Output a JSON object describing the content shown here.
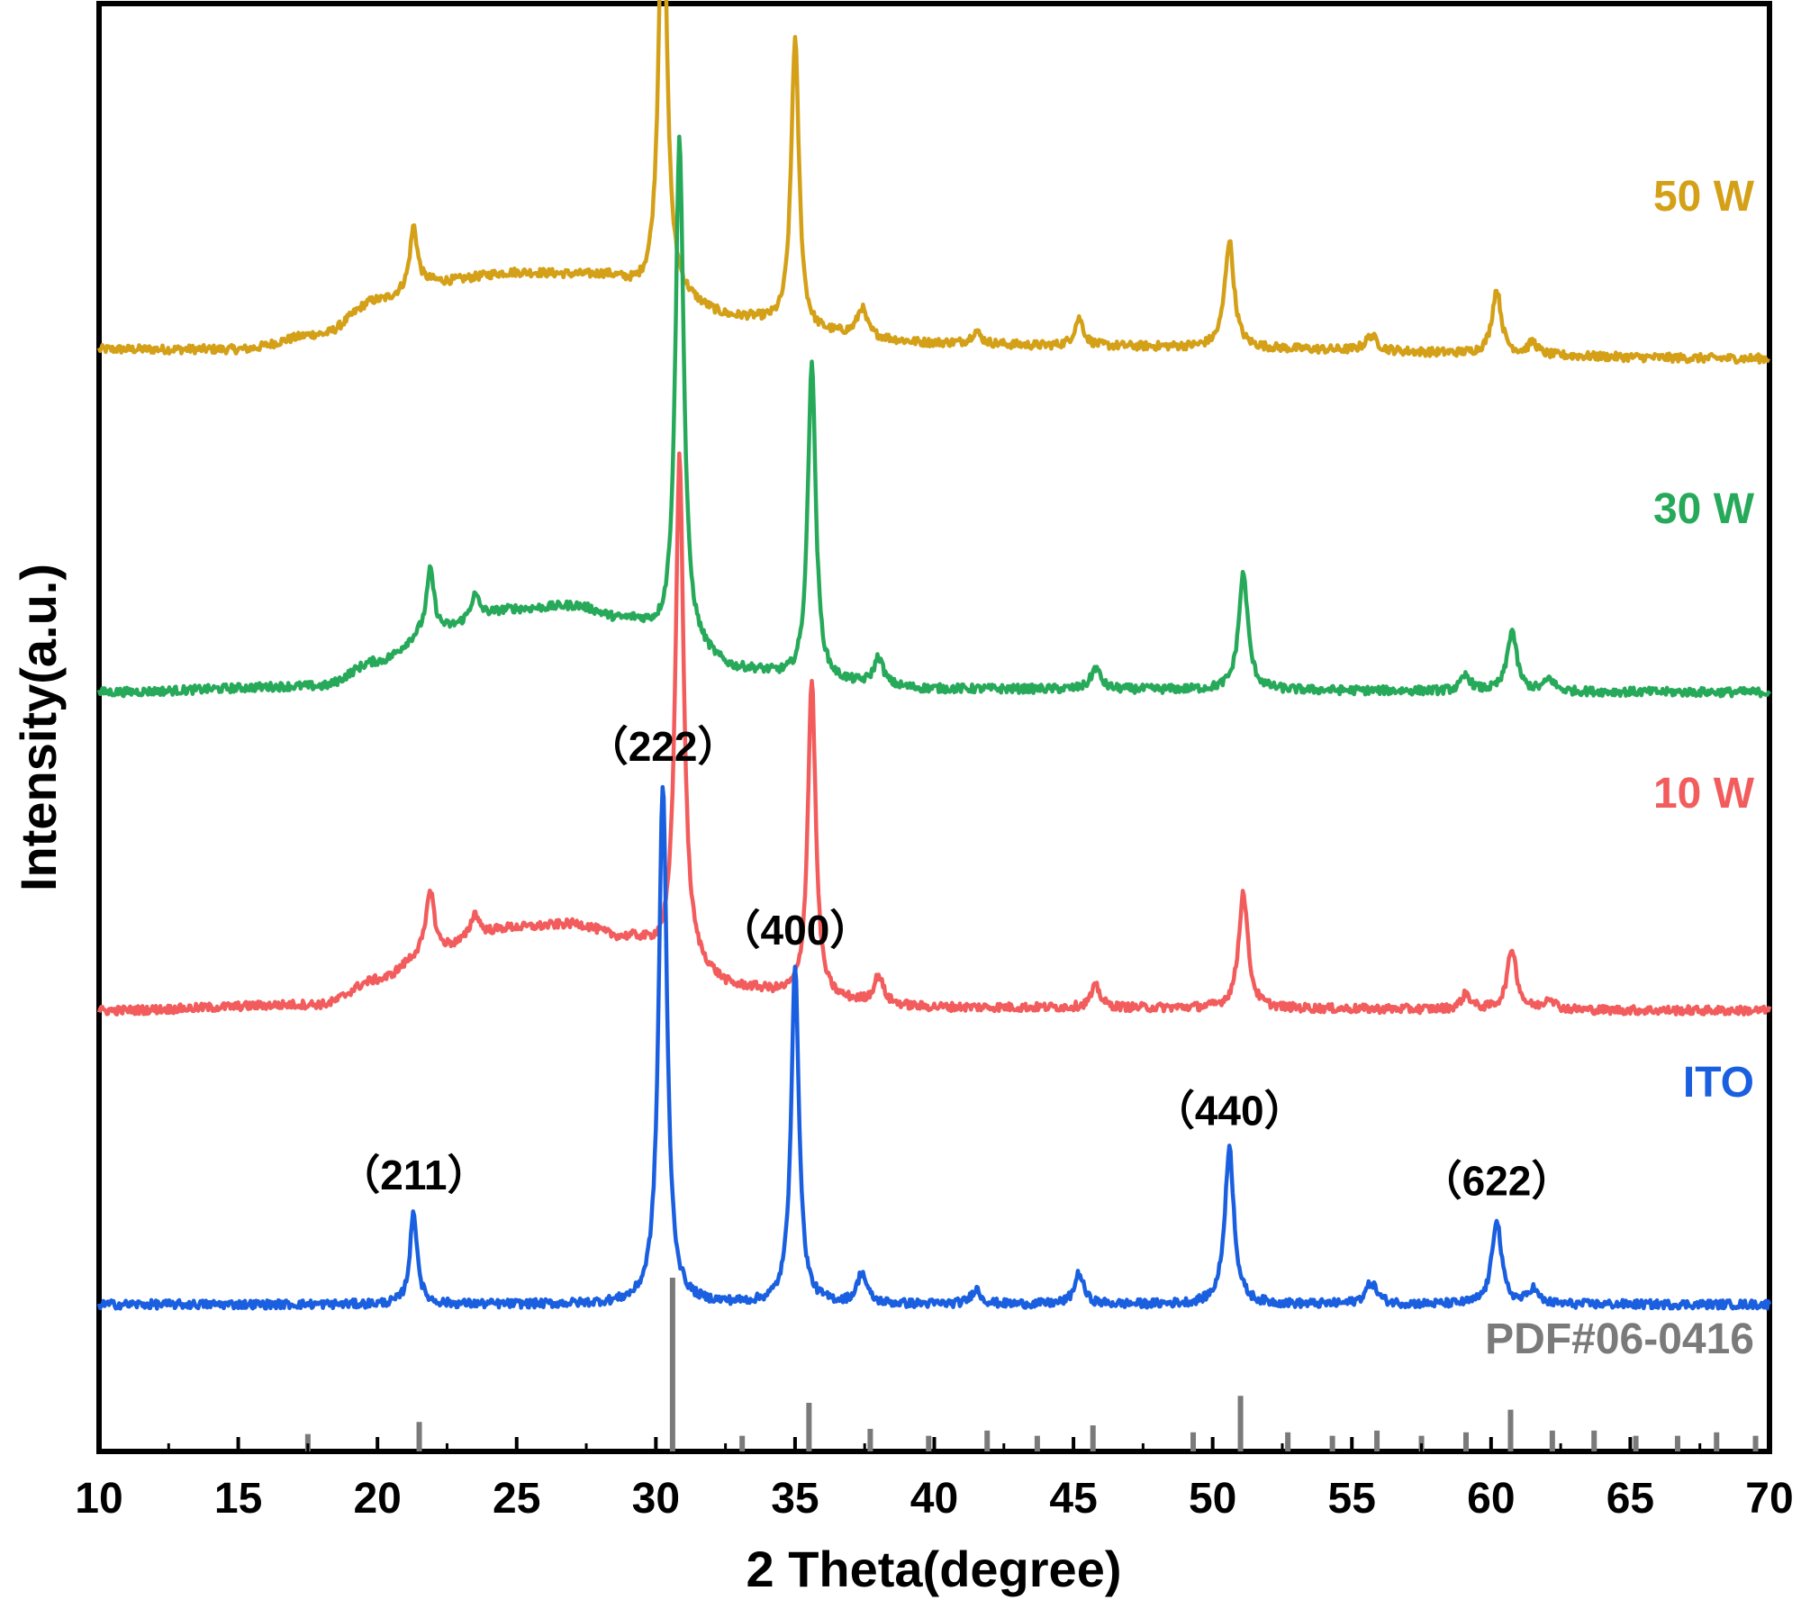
{
  "chart_data": {
    "type": "line",
    "title": "",
    "xlabel": "2 Theta(degree)",
    "ylabel": "Intensity(a.u.)",
    "xlim": [
      10,
      70
    ],
    "x_ticks": [
      "10",
      "15",
      "20",
      "25",
      "30",
      "35",
      "40",
      "45",
      "50",
      "55",
      "60",
      "65",
      "70"
    ],
    "y_ticks": [],
    "grid": false,
    "legend": "inline labels at right end of each curve",
    "series": [
      {
        "name": "50 W",
        "color": "#d4a017",
        "baseline_level": 3.6,
        "background": [
          [
            10,
            0
          ],
          [
            15,
            0
          ],
          [
            18,
            0.05
          ],
          [
            20,
            0.16
          ],
          [
            22,
            0.22
          ],
          [
            25,
            0.25
          ],
          [
            28,
            0.24
          ],
          [
            30,
            0.18
          ],
          [
            33,
            0.1
          ],
          [
            36,
            0.05
          ],
          [
            40,
            0.02
          ],
          [
            45,
            0.01
          ],
          [
            70,
            -0.03
          ]
        ],
        "peaks": [
          {
            "x": 21.3,
            "height": 0.2,
            "width": 0.16
          },
          {
            "x": 30.25,
            "height": 1.4,
            "width": 0.18
          },
          {
            "x": 35.0,
            "height": 0.95,
            "width": 0.17
          },
          {
            "x": 37.4,
            "height": 0.09,
            "width": 0.2
          },
          {
            "x": 41.5,
            "height": 0.04,
            "width": 0.2
          },
          {
            "x": 45.2,
            "height": 0.09,
            "width": 0.2
          },
          {
            "x": 50.6,
            "height": 0.35,
            "width": 0.2
          },
          {
            "x": 55.7,
            "height": 0.05,
            "width": 0.25
          },
          {
            "x": 60.2,
            "height": 0.21,
            "width": 0.2
          },
          {
            "x": 61.5,
            "height": 0.04,
            "width": 0.2
          }
        ]
      },
      {
        "name": "30 W",
        "color": "#27a95a",
        "baseline_level": 2.48,
        "background": [
          [
            10,
            0
          ],
          [
            18,
            0.02
          ],
          [
            20,
            0.1
          ],
          [
            22,
            0.2
          ],
          [
            25,
            0.27
          ],
          [
            27,
            0.28
          ],
          [
            29,
            0.23
          ],
          [
            31,
            0.14
          ],
          [
            33,
            0.07
          ],
          [
            36,
            0.03
          ],
          [
            40,
            0.01
          ],
          [
            70,
            0
          ]
        ],
        "peaks": [
          {
            "x": 21.9,
            "height": 0.2,
            "width": 0.16
          },
          {
            "x": 23.5,
            "height": 0.08,
            "width": 0.2
          },
          {
            "x": 30.85,
            "height": 1.67,
            "width": 0.18
          },
          {
            "x": 35.6,
            "height": 1.05,
            "width": 0.17
          },
          {
            "x": 38.0,
            "height": 0.09,
            "width": 0.2
          },
          {
            "x": 45.8,
            "height": 0.07,
            "width": 0.2
          },
          {
            "x": 51.1,
            "height": 0.38,
            "width": 0.2
          },
          {
            "x": 59.1,
            "height": 0.05,
            "width": 0.2
          },
          {
            "x": 60.75,
            "height": 0.2,
            "width": 0.2
          },
          {
            "x": 62.1,
            "height": 0.04,
            "width": 0.2
          }
        ]
      },
      {
        "name": "10 W",
        "color": "#f25c5c",
        "baseline_level": 1.44,
        "background": [
          [
            10,
            0
          ],
          [
            18,
            0.02
          ],
          [
            20,
            0.1
          ],
          [
            22,
            0.2
          ],
          [
            25,
            0.27
          ],
          [
            27,
            0.28
          ],
          [
            29,
            0.23
          ],
          [
            31,
            0.14
          ],
          [
            33,
            0.07
          ],
          [
            36,
            0.03
          ],
          [
            40,
            0.01
          ],
          [
            70,
            0
          ]
        ],
        "peaks": [
          {
            "x": 21.9,
            "height": 0.2,
            "width": 0.16
          },
          {
            "x": 23.5,
            "height": 0.08,
            "width": 0.2
          },
          {
            "x": 30.85,
            "height": 1.67,
            "width": 0.18
          },
          {
            "x": 35.6,
            "height": 1.05,
            "width": 0.17
          },
          {
            "x": 38.0,
            "height": 0.09,
            "width": 0.2
          },
          {
            "x": 45.8,
            "height": 0.07,
            "width": 0.2
          },
          {
            "x": 51.1,
            "height": 0.38,
            "width": 0.2
          },
          {
            "x": 59.1,
            "height": 0.05,
            "width": 0.2
          },
          {
            "x": 60.75,
            "height": 0.2,
            "width": 0.2
          },
          {
            "x": 62.1,
            "height": 0.04,
            "width": 0.2
          }
        ]
      },
      {
        "name": "ITO",
        "color": "#1a5fe0",
        "baseline_level": 0.48,
        "background": [
          [
            10,
            0
          ],
          [
            70,
            0
          ]
        ],
        "peaks": [
          {
            "x": 21.3,
            "height": 0.3,
            "width": 0.16
          },
          {
            "x": 30.25,
            "height": 1.7,
            "width": 0.18
          },
          {
            "x": 35.0,
            "height": 1.1,
            "width": 0.17
          },
          {
            "x": 37.4,
            "height": 0.1,
            "width": 0.2
          },
          {
            "x": 41.5,
            "height": 0.05,
            "width": 0.2
          },
          {
            "x": 45.2,
            "height": 0.1,
            "width": 0.2
          },
          {
            "x": 50.6,
            "height": 0.51,
            "width": 0.2
          },
          {
            "x": 55.7,
            "height": 0.07,
            "width": 0.25
          },
          {
            "x": 60.2,
            "height": 0.28,
            "width": 0.2
          },
          {
            "x": 61.5,
            "height": 0.05,
            "width": 0.2
          }
        ]
      }
    ],
    "reference": {
      "name": "PDF#06-0416",
      "color": "#7a7a7a",
      "sticks": [
        {
          "x": 17.5,
          "intensity": 0.1
        },
        {
          "x": 21.5,
          "intensity": 0.17
        },
        {
          "x": 30.6,
          "intensity": 1.0
        },
        {
          "x": 33.1,
          "intensity": 0.09
        },
        {
          "x": 35.5,
          "intensity": 0.28
        },
        {
          "x": 37.7,
          "intensity": 0.13
        },
        {
          "x": 39.8,
          "intensity": 0.09
        },
        {
          "x": 41.9,
          "intensity": 0.12
        },
        {
          "x": 43.7,
          "intensity": 0.09
        },
        {
          "x": 45.7,
          "intensity": 0.15
        },
        {
          "x": 49.3,
          "intensity": 0.11
        },
        {
          "x": 51.0,
          "intensity": 0.32
        },
        {
          "x": 52.7,
          "intensity": 0.11
        },
        {
          "x": 54.3,
          "intensity": 0.09
        },
        {
          "x": 55.9,
          "intensity": 0.12
        },
        {
          "x": 57.5,
          "intensity": 0.09
        },
        {
          "x": 59.1,
          "intensity": 0.11
        },
        {
          "x": 60.7,
          "intensity": 0.24
        },
        {
          "x": 62.2,
          "intensity": 0.12
        },
        {
          "x": 63.7,
          "intensity": 0.12
        },
        {
          "x": 65.2,
          "intensity": 0.09
        },
        {
          "x": 66.7,
          "intensity": 0.09
        },
        {
          "x": 68.1,
          "intensity": 0.11
        },
        {
          "x": 69.5,
          "intensity": 0.09
        }
      ]
    },
    "annotations": [
      {
        "text": "（211）",
        "x": 21.3
      },
      {
        "text": "（222）",
        "x": 30.25
      },
      {
        "text": "（400）",
        "x": 35.0
      },
      {
        "text": "（440）",
        "x": 50.6
      },
      {
        "text": "（622）",
        "x": 60.2
      }
    ]
  }
}
